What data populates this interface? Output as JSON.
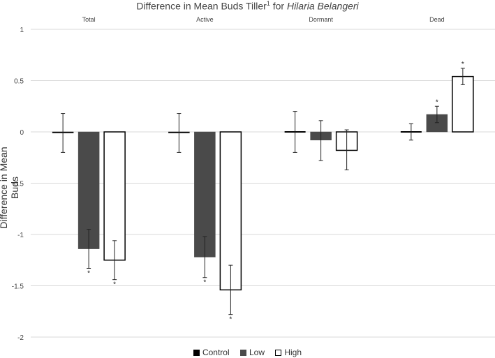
{
  "chart_data": {
    "type": "bar",
    "title_prefix": "Difference in Mean Buds Tiller",
    "title_sup": "1",
    "title_mid": " for ",
    "title_italic": "Hilaria Belangeri",
    "ylabel": "Difference in Mean Buds",
    "ylim": [
      -2,
      1
    ],
    "yticks": [
      "1",
      "0.5",
      "0",
      "-0.5",
      "-1",
      "-1.5",
      "-2"
    ],
    "ytick_values": [
      1,
      0.5,
      0,
      -0.5,
      -1,
      -1.5,
      -2
    ],
    "grid": true,
    "legend_position": "bottom",
    "categories": [
      "Total",
      "Active",
      "Dormant",
      "Dead"
    ],
    "series": [
      {
        "name": "Control",
        "color": "#000000",
        "fill": "#000000",
        "values": [
          -0.01,
          -0.01,
          0.0,
          0.0
        ],
        "err_low": [
          -0.2,
          -0.2,
          -0.2,
          -0.08
        ],
        "err_high": [
          0.18,
          0.18,
          0.2,
          0.08
        ],
        "sig": [
          false,
          false,
          false,
          false
        ]
      },
      {
        "name": "Low",
        "color": "#4a4a4a",
        "fill": "#4a4a4a",
        "values": [
          -1.14,
          -1.22,
          -0.08,
          0.17
        ],
        "err_low": [
          -1.33,
          -1.42,
          -0.28,
          0.09
        ],
        "err_high": [
          -0.95,
          -1.02,
          0.11,
          0.25
        ],
        "sig": [
          true,
          true,
          false,
          true
        ]
      },
      {
        "name": "High",
        "color": "#000000",
        "fill": "#ffffff",
        "values": [
          -1.25,
          -1.54,
          -0.18,
          0.54
        ],
        "err_low": [
          -1.44,
          -1.78,
          -0.37,
          0.46
        ],
        "err_high": [
          -1.06,
          -1.3,
          0.02,
          0.62
        ],
        "sig": [
          true,
          true,
          false,
          true
        ]
      }
    ],
    "sig_marker": "*"
  }
}
